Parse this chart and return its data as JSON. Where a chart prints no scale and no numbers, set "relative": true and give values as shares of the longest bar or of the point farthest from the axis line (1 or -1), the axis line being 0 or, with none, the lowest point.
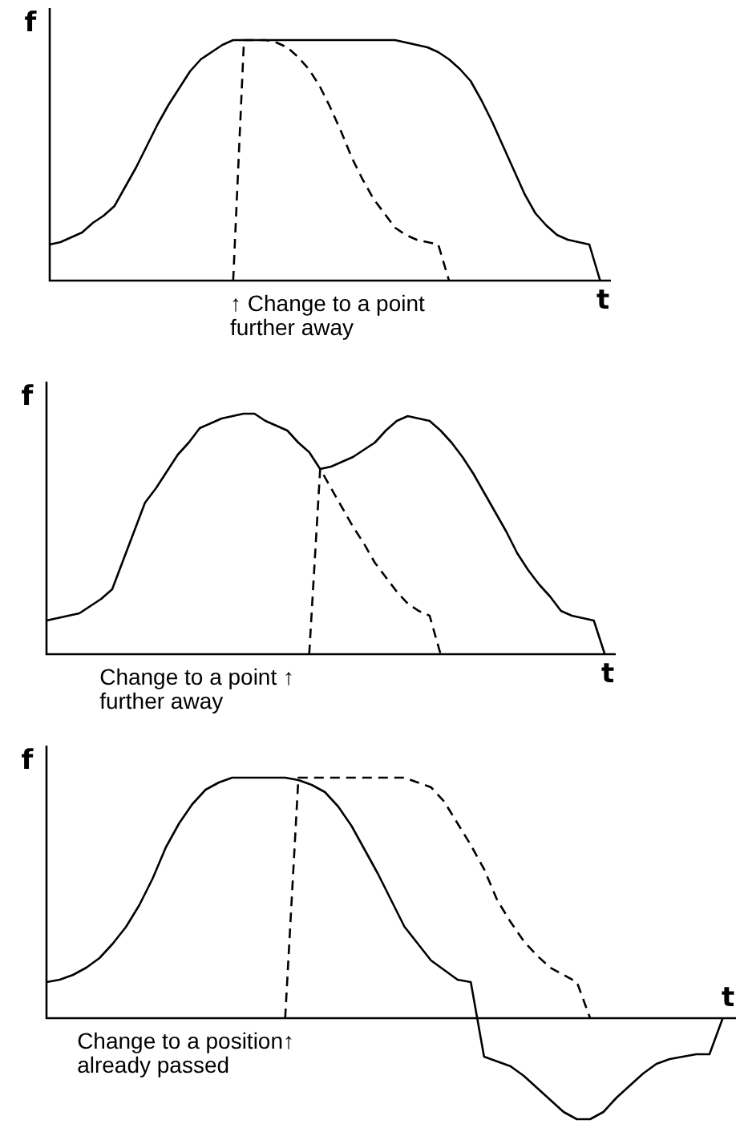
{
  "chart_data": [
    {
      "type": "line",
      "relative": true,
      "xlabel": "t",
      "ylabel": "f",
      "tick_labels": false,
      "categories": [
        null,
        null,
        null,
        null,
        null,
        null,
        null,
        null,
        null,
        null,
        null,
        null,
        null,
        null,
        null,
        null,
        null,
        null,
        null,
        null,
        null,
        null,
        null,
        null,
        null,
        null,
        null,
        null,
        null,
        null,
        null,
        null,
        null,
        null,
        null,
        null,
        null,
        null,
        null,
        null,
        null,
        null,
        null,
        null,
        null,
        null,
        null,
        null,
        null,
        null,
        null,
        null,
        null
      ],
      "series": [
        {
          "color": "#000000",
          "line_style": "solid",
          "values": [
            0.15,
            0.16,
            0.18,
            0.2,
            0.24,
            0.27,
            0.31,
            0.39,
            0.47,
            0.56,
            0.65,
            0.73,
            0.8,
            0.87,
            0.92,
            0.95,
            0.98,
            1,
            1,
            1,
            1,
            1,
            1,
            1,
            1,
            1,
            1,
            1,
            1,
            1,
            1,
            1,
            1,
            0.99,
            0.98,
            0.97,
            0.95,
            0.92,
            0.88,
            0.83,
            0.75,
            0.66,
            0.56,
            0.46,
            0.36,
            0.28,
            0.23,
            0.19,
            0.17,
            0.16,
            0.15,
            0,
            null
          ]
        },
        {
          "color": "#000000",
          "line_style": "dashed",
          "values": [
            null,
            null,
            null,
            null,
            null,
            null,
            null,
            null,
            null,
            null,
            null,
            null,
            null,
            null,
            null,
            null,
            null,
            0,
            1,
            1,
            1,
            0.99,
            0.97,
            0.93,
            0.88,
            0.81,
            0.72,
            0.62,
            0.51,
            0.42,
            0.34,
            0.28,
            0.22,
            0.19,
            0.17,
            0.16,
            0.15,
            0,
            null,
            null,
            null,
            null,
            null,
            null,
            null,
            null,
            null,
            null,
            null,
            null,
            null,
            null,
            null
          ]
        }
      ],
      "annotations": [
        "↑ Change to a point\nfurther away"
      ]
    },
    {
      "type": "line",
      "relative": true,
      "xlabel": "t",
      "ylabel": "f",
      "tick_labels": false,
      "categories": [
        null,
        null,
        null,
        null,
        null,
        null,
        null,
        null,
        null,
        null,
        null,
        null,
        null,
        null,
        null,
        null,
        null,
        null,
        null,
        null,
        null,
        null,
        null,
        null,
        null,
        null,
        null,
        null,
        null,
        null,
        null,
        null,
        null,
        null,
        null,
        null,
        null,
        null,
        null,
        null,
        null,
        null,
        null,
        null,
        null,
        null,
        null,
        null,
        null,
        null,
        null,
        null,
        null
      ],
      "series": [
        {
          "color": "#000000",
          "line_style": "solid",
          "values": [
            0.14,
            0.15,
            0.16,
            0.17,
            0.2,
            0.23,
            0.27,
            0.39,
            0.51,
            0.63,
            0.69,
            0.76,
            0.83,
            0.88,
            0.94,
            0.96,
            0.98,
            0.99,
            1,
            1,
            0.97,
            0.95,
            0.93,
            0.88,
            0.84,
            0.77,
            0.78,
            0.8,
            0.82,
            0.85,
            0.88,
            0.93,
            0.97,
            0.99,
            0.98,
            0.97,
            0.93,
            0.88,
            0.82,
            0.75,
            0.67,
            0.59,
            0.51,
            0.42,
            0.35,
            0.29,
            0.24,
            0.18,
            0.16,
            0.15,
            0.14,
            0,
            null
          ]
        },
        {
          "color": "#000000",
          "line_style": "dashed",
          "values": [
            null,
            null,
            null,
            null,
            null,
            null,
            null,
            null,
            null,
            null,
            null,
            null,
            null,
            null,
            null,
            null,
            null,
            null,
            null,
            null,
            null,
            null,
            null,
            null,
            0,
            0.77,
            0.69,
            0.61,
            0.53,
            0.46,
            0.38,
            0.32,
            0.26,
            0.21,
            0.18,
            0.16,
            0,
            null,
            null,
            null,
            null,
            null,
            null,
            null,
            null,
            null,
            null,
            null,
            null,
            null,
            null,
            null,
            null
          ]
        }
      ],
      "annotations": [
        "Change to a point ↑\nfurther away"
      ]
    },
    {
      "type": "line",
      "relative": true,
      "xlabel": "t",
      "ylabel": "f",
      "tick_labels": false,
      "categories": [
        null,
        null,
        null,
        null,
        null,
        null,
        null,
        null,
        null,
        null,
        null,
        null,
        null,
        null,
        null,
        null,
        null,
        null,
        null,
        null,
        null,
        null,
        null,
        null,
        null,
        null,
        null,
        null,
        null,
        null,
        null,
        null,
        null,
        null,
        null,
        null,
        null,
        null,
        null,
        null,
        null,
        null,
        null,
        null,
        null,
        null,
        null,
        null,
        null,
        null,
        null,
        null,
        null
      ],
      "series": [
        {
          "color": "#000000",
          "line_style": "solid",
          "values": [
            0.15,
            0.16,
            0.18,
            0.21,
            0.25,
            0.31,
            0.38,
            0.47,
            0.58,
            0.71,
            0.81,
            0.89,
            0.95,
            0.98,
            1,
            1,
            1,
            1,
            1,
            0.99,
            0.97,
            0.94,
            0.88,
            0.8,
            0.7,
            0.6,
            0.49,
            0.38,
            0.31,
            0.24,
            0.2,
            0.16,
            0.15,
            -0.16,
            -0.18,
            -0.2,
            -0.24,
            -0.29,
            -0.34,
            -0.39,
            -0.42,
            -0.42,
            -0.39,
            -0.33,
            -0.28,
            -0.23,
            -0.19,
            -0.17,
            -0.16,
            -0.15,
            -0.15,
            0,
            null
          ]
        },
        {
          "color": "#000000",
          "line_style": "dashed",
          "values": [
            null,
            null,
            null,
            null,
            null,
            null,
            null,
            null,
            null,
            null,
            null,
            null,
            null,
            null,
            null,
            null,
            null,
            null,
            0,
            1,
            1,
            1,
            1,
            1,
            1,
            1,
            1,
            1,
            0.98,
            0.96,
            0.9,
            0.81,
            0.72,
            0.62,
            0.49,
            0.4,
            0.32,
            0.26,
            0.21,
            0.18,
            0.15,
            0,
            null,
            null,
            null,
            null,
            null,
            null,
            null,
            null,
            null,
            null,
            null
          ]
        }
      ],
      "annotations": [
        "Change to a position↑\nalready passed"
      ]
    }
  ]
}
